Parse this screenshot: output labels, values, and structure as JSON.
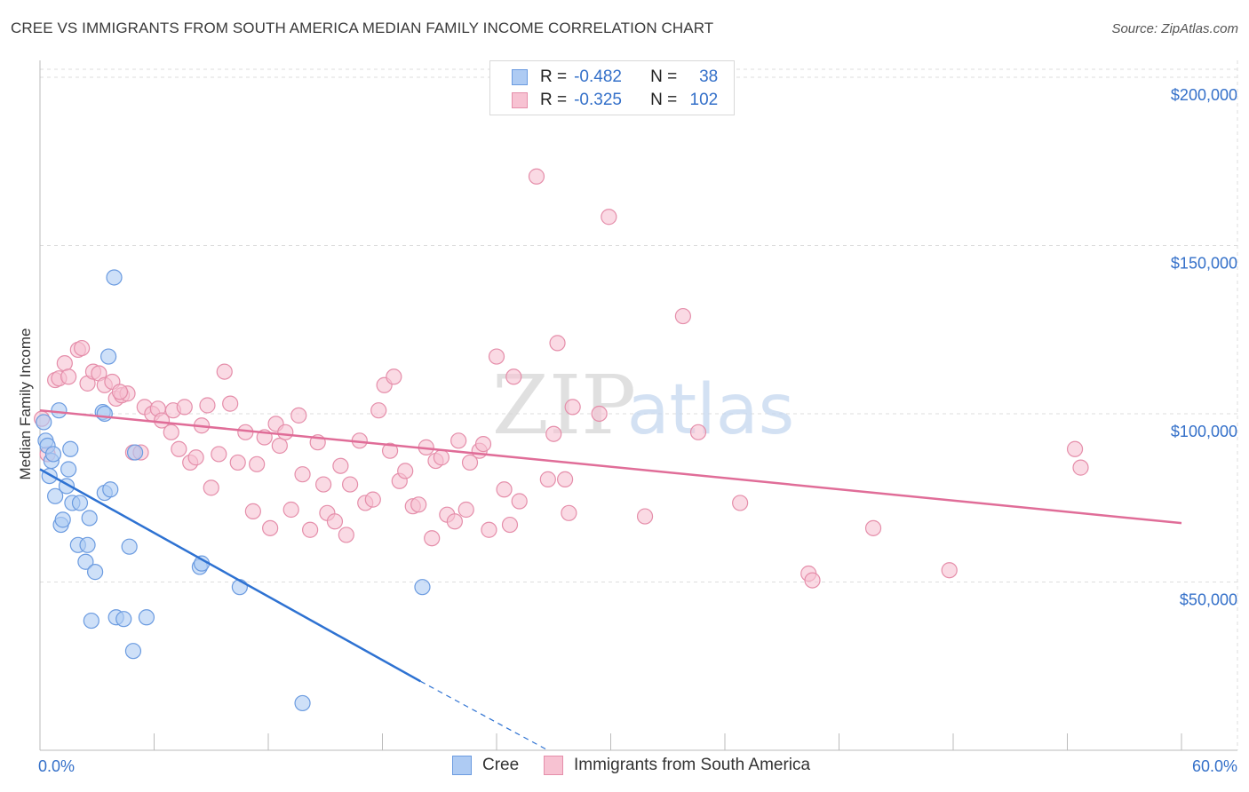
{
  "header": {
    "title": "CREE VS IMMIGRANTS FROM SOUTH AMERICA MEDIAN FAMILY INCOME CORRELATION CHART",
    "source": "Source: ZipAtlas.com"
  },
  "watermark": {
    "zip": "ZIP",
    "atlas": "atlas"
  },
  "legend": {
    "cree": {
      "r_label": "R =",
      "r_value": "-0.482",
      "n_label": "N =",
      "n_value": "38"
    },
    "immigrants": {
      "r_label": "R =",
      "r_value": "-0.325",
      "n_label": "N =",
      "n_value": "102"
    }
  },
  "bottom_legend": {
    "cree": "Cree",
    "immigrants": "Immigrants from South America"
  },
  "colors": {
    "cree_fill": "#aecbf3",
    "cree_stroke": "#6b9be0",
    "cree_line": "#2e72d2",
    "imm_fill": "#f7c2d2",
    "imm_stroke": "#e58eaa",
    "imm_line": "#e06d98",
    "tick_text": "#3470c9",
    "grid": "#dddddd"
  },
  "chart_data": {
    "type": "scatter",
    "title": "CREE VS IMMIGRANTS FROM SOUTH AMERICA MEDIAN FAMILY INCOME CORRELATION CHART",
    "xlabel": "",
    "ylabel": "Median Family Income",
    "xlim": [
      0,
      60
    ],
    "ylim": [
      0,
      205000
    ],
    "x_tick_labels": [
      "0.0%",
      "60.0%"
    ],
    "y_ticks": [
      50000,
      100000,
      150000,
      200000
    ],
    "y_tick_labels": [
      "$50,000",
      "$100,000",
      "$150,000",
      "$200,000"
    ],
    "series": [
      {
        "name": "Cree",
        "points": [
          [
            0.2,
            97500
          ],
          [
            0.3,
            92000
          ],
          [
            0.4,
            90500
          ],
          [
            0.5,
            81500
          ],
          [
            0.6,
            86000
          ],
          [
            0.8,
            75500
          ],
          [
            1.0,
            101000
          ],
          [
            1.1,
            67000
          ],
          [
            1.2,
            68500
          ],
          [
            1.4,
            78500
          ],
          [
            1.5,
            83500
          ],
          [
            1.6,
            89500
          ],
          [
            1.7,
            73500
          ],
          [
            2.0,
            61000
          ],
          [
            2.1,
            73500
          ],
          [
            2.4,
            56000
          ],
          [
            2.5,
            61000
          ],
          [
            2.6,
            69000
          ],
          [
            2.7,
            38500
          ],
          [
            2.9,
            53000
          ],
          [
            3.3,
            100500
          ],
          [
            3.4,
            100000
          ],
          [
            3.4,
            76500
          ],
          [
            3.6,
            117000
          ],
          [
            3.7,
            77500
          ],
          [
            3.9,
            140500
          ],
          [
            4.0,
            39500
          ],
          [
            4.4,
            39000
          ],
          [
            4.7,
            60500
          ],
          [
            4.9,
            29500
          ],
          [
            5.0,
            88500
          ],
          [
            5.6,
            39500
          ],
          [
            8.4,
            54500
          ],
          [
            8.5,
            55500
          ],
          [
            10.5,
            48500
          ],
          [
            13.8,
            14000
          ],
          [
            20.1,
            48500
          ],
          [
            0.7,
            88000
          ]
        ]
      },
      {
        "name": "Immigrants from South America",
        "points": [
          [
            0.1,
            98500
          ],
          [
            0.4,
            88000
          ],
          [
            0.8,
            110000
          ],
          [
            1.0,
            110500
          ],
          [
            1.3,
            115000
          ],
          [
            1.5,
            111000
          ],
          [
            2.0,
            119000
          ],
          [
            2.2,
            119500
          ],
          [
            2.5,
            109000
          ],
          [
            2.8,
            112500
          ],
          [
            3.1,
            112000
          ],
          [
            3.4,
            108500
          ],
          [
            3.8,
            109500
          ],
          [
            4.0,
            104500
          ],
          [
            4.3,
            105500
          ],
          [
            4.6,
            106000
          ],
          [
            4.9,
            88500
          ],
          [
            5.3,
            88500
          ],
          [
            5.5,
            102000
          ],
          [
            5.9,
            100000
          ],
          [
            6.2,
            101500
          ],
          [
            6.4,
            98000
          ],
          [
            6.9,
            94500
          ],
          [
            7.0,
            101000
          ],
          [
            7.3,
            89500
          ],
          [
            7.6,
            102000
          ],
          [
            7.9,
            85500
          ],
          [
            8.2,
            87000
          ],
          [
            8.5,
            96500
          ],
          [
            8.8,
            102500
          ],
          [
            9.0,
            78000
          ],
          [
            9.4,
            88000
          ],
          [
            9.7,
            112500
          ],
          [
            10.0,
            103000
          ],
          [
            10.4,
            85500
          ],
          [
            10.8,
            94500
          ],
          [
            11.2,
            71000
          ],
          [
            11.4,
            85000
          ],
          [
            11.8,
            93000
          ],
          [
            12.1,
            66000
          ],
          [
            12.4,
            97000
          ],
          [
            12.6,
            90500
          ],
          [
            12.9,
            94500
          ],
          [
            13.2,
            71500
          ],
          [
            13.6,
            99500
          ],
          [
            13.8,
            82000
          ],
          [
            14.2,
            65500
          ],
          [
            14.6,
            91500
          ],
          [
            14.9,
            79000
          ],
          [
            15.1,
            70500
          ],
          [
            15.5,
            68000
          ],
          [
            15.8,
            84500
          ],
          [
            16.1,
            64000
          ],
          [
            16.3,
            79000
          ],
          [
            16.8,
            92000
          ],
          [
            17.1,
            73500
          ],
          [
            17.5,
            74500
          ],
          [
            17.8,
            101000
          ],
          [
            18.1,
            108500
          ],
          [
            18.4,
            89000
          ],
          [
            18.6,
            111000
          ],
          [
            18.9,
            80000
          ],
          [
            19.2,
            83000
          ],
          [
            19.6,
            72500
          ],
          [
            19.9,
            73000
          ],
          [
            20.3,
            90000
          ],
          [
            20.6,
            63000
          ],
          [
            20.8,
            86000
          ],
          [
            21.1,
            87000
          ],
          [
            21.4,
            70000
          ],
          [
            21.8,
            68000
          ],
          [
            22.0,
            92000
          ],
          [
            22.4,
            71500
          ],
          [
            22.6,
            85500
          ],
          [
            23.1,
            89000
          ],
          [
            23.3,
            91000
          ],
          [
            23.6,
            65500
          ],
          [
            24.0,
            117000
          ],
          [
            24.4,
            77500
          ],
          [
            24.7,
            67000
          ],
          [
            24.9,
            111000
          ],
          [
            25.2,
            74000
          ],
          [
            26.1,
            170500
          ],
          [
            26.7,
            80500
          ],
          [
            27.0,
            94000
          ],
          [
            27.2,
            121000
          ],
          [
            27.6,
            80500
          ],
          [
            27.8,
            70500
          ],
          [
            28.0,
            102000
          ],
          [
            29.4,
            100000
          ],
          [
            29.9,
            158500
          ],
          [
            31.8,
            69500
          ],
          [
            33.8,
            129000
          ],
          [
            34.6,
            94500
          ],
          [
            36.8,
            73500
          ],
          [
            40.4,
            52500
          ],
          [
            40.6,
            50500
          ],
          [
            43.8,
            66000
          ],
          [
            47.8,
            53500
          ],
          [
            54.4,
            89500
          ],
          [
            54.7,
            84000
          ],
          [
            4.2,
            106500
          ]
        ]
      }
    ],
    "trendlines": [
      {
        "series": "Cree",
        "from": [
          0,
          83500
        ],
        "to": [
          20.0,
          20500
        ],
        "dashed_to": [
          26.7,
          0
        ]
      },
      {
        "series": "Immigrants from South America",
        "from": [
          0,
          101000
        ],
        "to": [
          60.0,
          67500
        ]
      }
    ]
  }
}
